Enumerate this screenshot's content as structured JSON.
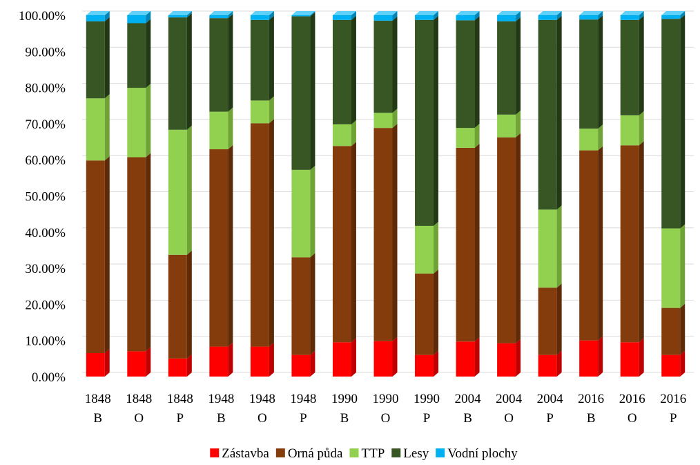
{
  "chart_data": {
    "type": "bar",
    "stacked": true,
    "style": "3d-stacked-percent",
    "categories": [
      [
        "1848",
        "B"
      ],
      [
        "1848",
        "O"
      ],
      [
        "1848",
        "P"
      ],
      [
        "1948",
        "B"
      ],
      [
        "1948",
        "O"
      ],
      [
        "1948",
        "P"
      ],
      [
        "1990",
        "B"
      ],
      [
        "1990",
        "O"
      ],
      [
        "1990",
        "P"
      ],
      [
        "2004",
        "B"
      ],
      [
        "2004",
        "O"
      ],
      [
        "2004",
        "P"
      ],
      [
        "2016",
        "B"
      ],
      [
        "2016",
        "O"
      ],
      [
        "2016",
        "P"
      ]
    ],
    "series": [
      {
        "name": "Zástavba",
        "color": "#ff0000",
        "side_color": "#c00000",
        "top_color": "#ff5050",
        "values": [
          6.5,
          7.0,
          5.0,
          8.3,
          8.3,
          6.0,
          9.5,
          9.8,
          6.0,
          9.7,
          9.2,
          6.0,
          10.0,
          9.5,
          6.0
        ]
      },
      {
        "name": "Orná půda",
        "color": "#843c0c",
        "side_color": "#5e2a08",
        "top_color": "#a0521c",
        "values": [
          53.3,
          53.7,
          28.7,
          54.6,
          61.8,
          27.0,
          54.3,
          59.0,
          22.5,
          53.6,
          57.0,
          18.6,
          52.6,
          54.5,
          13.0
        ]
      },
      {
        "name": "TTP",
        "color": "#92d050",
        "side_color": "#6fa336",
        "top_color": "#b4e27e",
        "values": [
          17.2,
          19.2,
          34.6,
          10.4,
          6.3,
          24.2,
          6.0,
          4.2,
          13.2,
          5.5,
          6.3,
          21.6,
          6.0,
          8.3,
          22.0
        ]
      },
      {
        "name": "Lesy",
        "color": "#375623",
        "side_color": "#233916",
        "top_color": "#4e7232",
        "values": [
          21.3,
          17.9,
          31.1,
          25.9,
          22.3,
          42.5,
          28.9,
          25.5,
          57.0,
          29.8,
          25.8,
          52.5,
          30.2,
          26.4,
          58.0
        ]
      },
      {
        "name": "Vodní plochy",
        "color": "#00b0f0",
        "side_color": "#0085b5",
        "top_color": "#5fd0f7",
        "values": [
          1.7,
          2.2,
          0.6,
          0.8,
          1.3,
          0.3,
          1.3,
          1.5,
          1.3,
          1.4,
          1.7,
          1.3,
          1.2,
          1.3,
          1.0
        ]
      }
    ],
    "y_ticks": [
      "0.00%",
      "10.00%",
      "20.00%",
      "30.00%",
      "40.00%",
      "50.00%",
      "60.00%",
      "70.00%",
      "80.00%",
      "90.00%",
      "100.00%"
    ],
    "ylim": [
      0,
      100
    ],
    "y_format": "percent",
    "grid": true,
    "legend_position": "bottom"
  }
}
